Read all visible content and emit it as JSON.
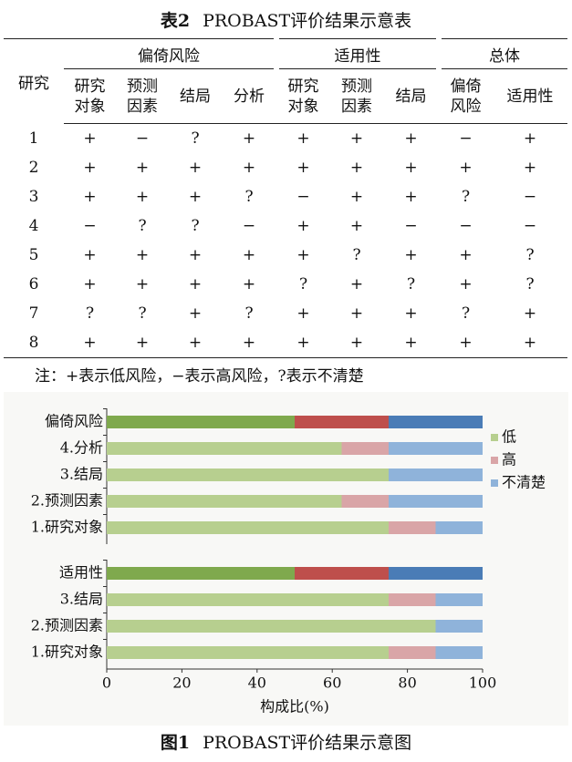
{
  "table": {
    "label": "表2",
    "title": "PROBAST评价结果示意表",
    "row_header": "研究",
    "groups": [
      {
        "label": "偏倚风险",
        "columns": [
          "研究对象",
          "预测因素",
          "结局",
          "分析"
        ]
      },
      {
        "label": "适用性",
        "columns": [
          "研究对象",
          "预测因素",
          "结局"
        ]
      },
      {
        "label": "总体",
        "columns": [
          "偏倚风险",
          "适用性"
        ]
      }
    ],
    "rows": [
      [
        1,
        "+",
        "−",
        "?",
        "+",
        "+",
        "+",
        "+",
        "−",
        "+"
      ],
      [
        2,
        "+",
        "+",
        "+",
        "+",
        "+",
        "+",
        "+",
        "+",
        "+"
      ],
      [
        3,
        "+",
        "+",
        "+",
        "?",
        "−",
        "+",
        "+",
        "?",
        "−"
      ],
      [
        4,
        "−",
        "?",
        "?",
        "−",
        "+",
        "+",
        "−",
        "−",
        "−"
      ],
      [
        5,
        "+",
        "+",
        "+",
        "+",
        "+",
        "?",
        "+",
        "+",
        "?"
      ],
      [
        6,
        "+",
        "+",
        "+",
        "+",
        "?",
        "+",
        "?",
        "+",
        "?"
      ],
      [
        7,
        "?",
        "?",
        "+",
        "?",
        "+",
        "+",
        "+",
        "?",
        "+"
      ],
      [
        8,
        "+",
        "+",
        "+",
        "+",
        "+",
        "+",
        "+",
        "+",
        "+"
      ]
    ]
  },
  "note": "注：+表示低风险，−表示高风险，?表示不清楚",
  "chart_data": {
    "type": "bar",
    "orientation": "horizontal",
    "stacked": true,
    "xlabel": "构成比(%)",
    "xlim": [
      0,
      100
    ],
    "xticks": [
      0,
      20,
      40,
      60,
      80,
      100
    ],
    "legend": "right",
    "series": [
      {
        "name": "低",
        "color": "#b7cf8f",
        "highlight_color": "#7fa94d"
      },
      {
        "name": "高",
        "color": "#d9a5a7",
        "highlight_color": "#be4f4c"
      },
      {
        "name": "不清楚",
        "color": "#8fb3da",
        "highlight_color": "#4a7cb6"
      }
    ],
    "panels": [
      {
        "categories": [
          "偏倚风险",
          "4.分析",
          "3.结局",
          "2.预测因素",
          "1.研究对象"
        ],
        "highlight": 0,
        "values": [
          [
            50,
            62.5,
            75,
            62.5,
            75
          ],
          [
            25,
            12.5,
            0,
            12.5,
            12.5
          ],
          [
            25,
            25,
            25,
            25,
            12.5
          ]
        ]
      },
      {
        "categories": [
          "适用性",
          "3.结局",
          "2.预测因素",
          "1.研究对象"
        ],
        "highlight": 0,
        "values": [
          [
            50,
            75,
            87.5,
            75
          ],
          [
            25,
            12.5,
            0,
            12.5
          ],
          [
            25,
            12.5,
            12.5,
            12.5
          ]
        ]
      }
    ]
  },
  "caption": {
    "label": "图1",
    "title": "PROBAST评价结果示意图"
  }
}
